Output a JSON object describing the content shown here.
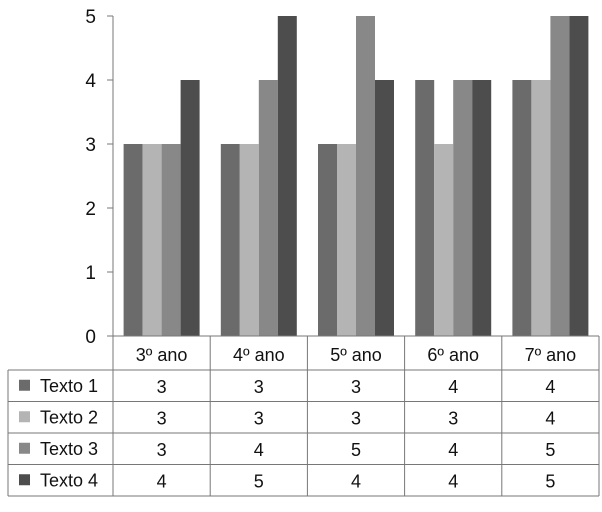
{
  "chart_data": {
    "type": "bar",
    "categories": [
      "3º ano",
      "4º ano",
      "5º ano",
      "6º ano",
      "7º ano"
    ],
    "series": [
      {
        "name": "Texto 1",
        "values": [
          3,
          3,
          3,
          4,
          4
        ],
        "color": "#6b6b6b"
      },
      {
        "name": "Texto 2",
        "values": [
          3,
          3,
          3,
          3,
          4
        ],
        "color": "#b4b4b4"
      },
      {
        "name": "Texto 3",
        "values": [
          3,
          4,
          5,
          4,
          5
        ],
        "color": "#888888"
      },
      {
        "name": "Texto 4",
        "values": [
          4,
          5,
          4,
          4,
          5
        ],
        "color": "#4d4d4d"
      }
    ],
    "ylim": [
      0,
      5
    ],
    "yticks": [
      0,
      1,
      2,
      3,
      4,
      5
    ],
    "grid": false,
    "data_table": true,
    "legend": "data-table-left"
  }
}
